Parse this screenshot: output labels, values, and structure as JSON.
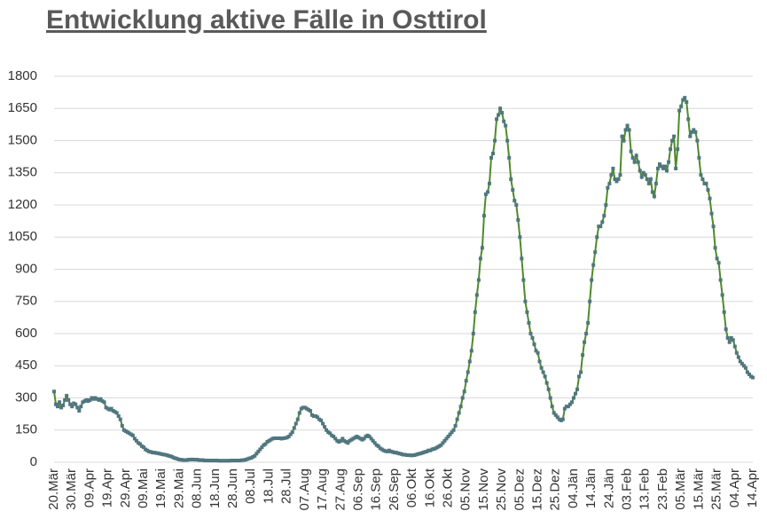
{
  "chart_data": {
    "type": "line",
    "title": "Entwicklung aktive Fälle in Osttirol",
    "categories": [
      "20.Mär",
      null,
      null,
      null,
      null,
      null,
      null,
      null,
      null,
      null,
      "30.Mär",
      null,
      null,
      null,
      null,
      null,
      null,
      null,
      null,
      null,
      "09.Apr",
      null,
      null,
      null,
      null,
      null,
      null,
      null,
      null,
      null,
      "19.Apr",
      null,
      null,
      null,
      null,
      null,
      null,
      null,
      null,
      null,
      "29.Apr",
      null,
      null,
      null,
      null,
      null,
      null,
      null,
      null,
      null,
      "09.Mai",
      null,
      null,
      null,
      null,
      null,
      null,
      null,
      null,
      null,
      "19.Mai",
      null,
      null,
      null,
      null,
      null,
      null,
      null,
      null,
      null,
      "29.Mai",
      null,
      null,
      null,
      null,
      null,
      null,
      null,
      null,
      null,
      "08.Jun",
      null,
      null,
      null,
      null,
      null,
      null,
      null,
      null,
      null,
      "18.Jun",
      null,
      null,
      null,
      null,
      null,
      null,
      null,
      null,
      null,
      "28.Jun",
      null,
      null,
      null,
      null,
      null,
      null,
      null,
      null,
      null,
      "08.Jul",
      null,
      null,
      null,
      null,
      null,
      null,
      null,
      null,
      null,
      "18.Jul",
      null,
      null,
      null,
      null,
      null,
      null,
      null,
      null,
      null,
      "28.Jul",
      null,
      null,
      null,
      null,
      null,
      null,
      null,
      null,
      null,
      "07.Aug",
      null,
      null,
      null,
      null,
      null,
      null,
      null,
      null,
      null,
      "17.Aug",
      null,
      null,
      null,
      null,
      null,
      null,
      null,
      null,
      null,
      "27.Aug",
      null,
      null,
      null,
      null,
      null,
      null,
      null,
      null,
      null,
      "06.Sep",
      null,
      null,
      null,
      null,
      null,
      null,
      null,
      null,
      null,
      "16.Sep",
      null,
      null,
      null,
      null,
      null,
      null,
      null,
      null,
      null,
      "26.Sep",
      null,
      null,
      null,
      null,
      null,
      null,
      null,
      null,
      null,
      "06.Okt",
      null,
      null,
      null,
      null,
      null,
      null,
      null,
      null,
      null,
      "16.Okt",
      null,
      null,
      null,
      null,
      null,
      null,
      null,
      null,
      null,
      "26.Okt",
      null,
      null,
      null,
      null,
      null,
      null,
      null,
      null,
      null,
      "05.Nov",
      null,
      null,
      null,
      null,
      null,
      null,
      null,
      null,
      null,
      "15.Nov",
      null,
      null,
      null,
      null,
      null,
      null,
      null,
      null,
      null,
      "25.Nov",
      null,
      null,
      null,
      null,
      null,
      null,
      null,
      null,
      null,
      "05.Dez",
      null,
      null,
      null,
      null,
      null,
      null,
      null,
      null,
      null,
      "15.Dez",
      null,
      null,
      null,
      null,
      null,
      null,
      null,
      null,
      null,
      "25.Dez",
      null,
      null,
      null,
      null,
      null,
      null,
      null,
      null,
      null,
      "04.Jän",
      null,
      null,
      null,
      null,
      null,
      null,
      null,
      null,
      null,
      "14.Jän",
      null,
      null,
      null,
      null,
      null,
      null,
      null,
      null,
      null,
      "24.Jän",
      null,
      null,
      null,
      null,
      null,
      null,
      null,
      null,
      null,
      "03.Feb",
      null,
      null,
      null,
      null,
      null,
      null,
      null,
      null,
      null,
      "13.Feb",
      null,
      null,
      null,
      null,
      null,
      null,
      null,
      null,
      null,
      "23.Feb",
      null,
      null,
      null,
      null,
      null,
      null,
      null,
      null,
      null,
      "05.Mär",
      null,
      null,
      null,
      null,
      null,
      null,
      null,
      null,
      null,
      "15.Mär",
      null,
      null,
      null,
      null,
      null,
      null,
      null,
      null,
      null,
      "25.Mär",
      null,
      null,
      null,
      null,
      null,
      null,
      null,
      null,
      null,
      "04.Apr",
      null,
      null,
      null,
      null,
      null,
      null,
      null,
      null,
      null,
      "14.Apr"
    ],
    "values": [
      330,
      270,
      260,
      280,
      255,
      265,
      290,
      310,
      290,
      270,
      260,
      275,
      270,
      255,
      240,
      260,
      280,
      285,
      290,
      285,
      290,
      300,
      295,
      300,
      295,
      290,
      295,
      285,
      280,
      255,
      250,
      245,
      250,
      240,
      235,
      230,
      215,
      200,
      170,
      150,
      145,
      140,
      135,
      130,
      125,
      110,
      100,
      90,
      85,
      75,
      70,
      60,
      55,
      50,
      48,
      45,
      45,
      43,
      42,
      40,
      38,
      36,
      35,
      33,
      30,
      28,
      25,
      20,
      18,
      15,
      12,
      12,
      10,
      10,
      10,
      12,
      12,
      13,
      12,
      12,
      12,
      10,
      10,
      10,
      8,
      8,
      8,
      8,
      8,
      8,
      8,
      8,
      7,
      7,
      7,
      7,
      7,
      7,
      7,
      8,
      8,
      8,
      8,
      8,
      8,
      10,
      10,
      12,
      15,
      18,
      20,
      25,
      30,
      40,
      50,
      60,
      70,
      80,
      85,
      95,
      100,
      105,
      110,
      112,
      112,
      112,
      112,
      110,
      112,
      113,
      115,
      120,
      130,
      140,
      160,
      180,
      200,
      230,
      250,
      255,
      255,
      250,
      245,
      240,
      220,
      215,
      215,
      210,
      200,
      195,
      180,
      165,
      150,
      140,
      135,
      125,
      120,
      110,
      100,
      95,
      100,
      110,
      100,
      95,
      90,
      100,
      105,
      110,
      115,
      120,
      115,
      110,
      105,
      110,
      120,
      125,
      120,
      110,
      100,
      90,
      80,
      75,
      65,
      60,
      55,
      52,
      50,
      55,
      50,
      48,
      45,
      45,
      42,
      40,
      38,
      35,
      35,
      33,
      33,
      32,
      32,
      33,
      35,
      38,
      40,
      42,
      45,
      48,
      50,
      55,
      55,
      60,
      62,
      65,
      70,
      75,
      80,
      90,
      100,
      110,
      120,
      130,
      140,
      150,
      170,
      200,
      230,
      260,
      300,
      330,
      380,
      420,
      470,
      520,
      600,
      700,
      780,
      850,
      950,
      1000,
      1150,
      1250,
      1260,
      1300,
      1420,
      1440,
      1500,
      1600,
      1620,
      1650,
      1630,
      1590,
      1570,
      1500,
      1420,
      1320,
      1270,
      1220,
      1200,
      1130,
      1050,
      950,
      850,
      750,
      700,
      650,
      600,
      580,
      550,
      520,
      510,
      470,
      440,
      420,
      400,
      370,
      340,
      300,
      260,
      230,
      220,
      210,
      200,
      195,
      200,
      250,
      260,
      260,
      270,
      280,
      300,
      320,
      340,
      400,
      420,
      500,
      560,
      600,
      650,
      750,
      850,
      920,
      980,
      1050,
      1100,
      1100,
      1120,
      1150,
      1200,
      1280,
      1300,
      1340,
      1370,
      1320,
      1310,
      1320,
      1340,
      1520,
      1500,
      1550,
      1570,
      1550,
      1450,
      1420,
      1400,
      1430,
      1400,
      1360,
      1330,
      1350,
      1340,
      1320,
      1300,
      1320,
      1260,
      1240,
      1300,
      1370,
      1390,
      1380,
      1370,
      1380,
      1360,
      1400,
      1460,
      1500,
      1520,
      1370,
      1460,
      1640,
      1660,
      1690,
      1700,
      1680,
      1600,
      1520,
      1540,
      1550,
      1540,
      1500,
      1420,
      1340,
      1320,
      1300,
      1300,
      1270,
      1230,
      1160,
      1100,
      1000,
      950,
      930,
      850,
      780,
      700,
      620,
      580,
      560,
      580,
      570,
      540,
      510,
      490,
      470,
      460,
      450,
      440,
      420,
      410,
      400,
      395
    ],
    "color": "#4f8a2b",
    "marker_color": "#50767f",
    "ylim": [
      0,
      1800
    ],
    "yticks": [
      0,
      150,
      300,
      450,
      600,
      750,
      900,
      1050,
      1200,
      1350,
      1500,
      1650,
      1800
    ],
    "grid": true
  }
}
